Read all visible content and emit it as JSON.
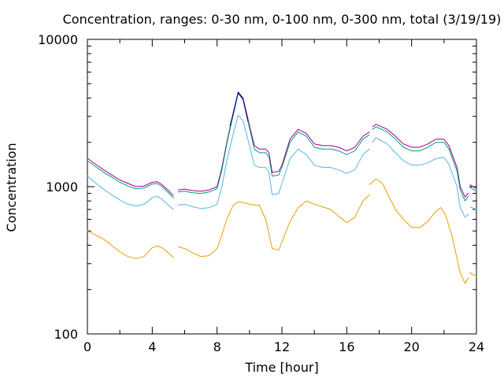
{
  "chart_data": {
    "type": "line",
    "title": "Concentration, ranges: 0-30 nm, 0-100 nm, 0-300 nm, total (3/19/19)",
    "xlabel": "Time [hour]",
    "ylabel": "Concentration",
    "xlim": [
      0,
      24
    ],
    "ylim": [
      100,
      10000
    ],
    "yscale": "log",
    "grid": false,
    "x_ticks": [
      "0",
      "4",
      "8",
      "12",
      "16",
      "20",
      "24"
    ],
    "y_ticks": [
      "100",
      "1000",
      "10000"
    ],
    "series": [
      {
        "color": "#990099",
        "segments": [
          [
            [
              0,
              1560
            ],
            [
              0.5,
              1420
            ],
            [
              1,
              1300
            ],
            [
              1.5,
              1200
            ],
            [
              2,
              1110
            ],
            [
              2.5,
              1050
            ],
            [
              3,
              1000
            ],
            [
              3.5,
              1010
            ],
            [
              4,
              1070
            ],
            [
              4.3,
              1080
            ],
            [
              4.6,
              1030
            ],
            [
              5,
              940
            ],
            [
              5.3,
              870
            ]
          ],
          [
            [
              5.6,
              950
            ],
            [
              6,
              960
            ],
            [
              6.5,
              940
            ],
            [
              7,
              930
            ],
            [
              7.5,
              950
            ],
            [
              8,
              1000
            ],
            [
              8.3,
              1350
            ],
            [
              8.6,
              2000
            ],
            [
              9,
              3200
            ],
            [
              9.3,
              4400
            ],
            [
              9.6,
              4000
            ],
            [
              10,
              2600
            ],
            [
              10.3,
              1900
            ],
            [
              10.6,
              1800
            ],
            [
              11,
              1800
            ],
            [
              11.2,
              1700
            ],
            [
              11.4,
              1250
            ],
            [
              11.8,
              1270
            ],
            [
              12,
              1400
            ],
            [
              12.5,
              2100
            ],
            [
              13,
              2450
            ],
            [
              13.5,
              2300
            ],
            [
              14,
              1950
            ],
            [
              14.5,
              1900
            ],
            [
              15,
              1900
            ],
            [
              15.5,
              1850
            ],
            [
              16,
              1750
            ],
            [
              16.5,
              1850
            ],
            [
              17,
              2200
            ],
            [
              17.4,
              2350
            ]
          ],
          [
            [
              17.6,
              2550
            ],
            [
              17.8,
              2650
            ],
            [
              18.5,
              2450
            ],
            [
              19,
              2200
            ],
            [
              19.5,
              1950
            ],
            [
              20,
              1850
            ],
            [
              20.5,
              1850
            ],
            [
              21,
              1950
            ],
            [
              21.5,
              2100
            ],
            [
              22,
              2100
            ],
            [
              22.3,
              1900
            ],
            [
              22.8,
              1350
            ],
            [
              23,
              1000
            ],
            [
              23.3,
              850
            ],
            [
              23.5,
              900
            ]
          ],
          [
            [
              23.6,
              1030
            ],
            [
              24,
              970
            ]
          ]
        ]
      },
      {
        "color": "#009e73",
        "segments": [
          [
            [
              0,
              1500
            ],
            [
              0.5,
              1370
            ],
            [
              1,
              1250
            ],
            [
              1.5,
              1160
            ],
            [
              2,
              1070
            ],
            [
              2.5,
              1010
            ],
            [
              3,
              965
            ],
            [
              3.5,
              980
            ],
            [
              4,
              1040
            ],
            [
              4.3,
              1050
            ],
            [
              4.6,
              1000
            ],
            [
              5,
              910
            ],
            [
              5.3,
              840
            ]
          ],
          [
            [
              5.6,
              920
            ],
            [
              6,
              930
            ],
            [
              6.5,
              910
            ],
            [
              7,
              900
            ],
            [
              7.5,
              920
            ],
            [
              8,
              970
            ],
            [
              8.3,
              1300
            ],
            [
              8.6,
              1950
            ],
            [
              9,
              3100
            ],
            [
              9.3,
              4300
            ],
            [
              9.6,
              3900
            ],
            [
              10,
              2500
            ],
            [
              10.3,
              1800
            ],
            [
              10.6,
              1700
            ],
            [
              11,
              1700
            ],
            [
              11.2,
              1600
            ],
            [
              11.4,
              1180
            ],
            [
              11.8,
              1200
            ],
            [
              12,
              1350
            ],
            [
              12.5,
              2000
            ],
            [
              13,
              2350
            ],
            [
              13.5,
              2200
            ],
            [
              14,
              1850
            ],
            [
              14.5,
              1800
            ],
            [
              15,
              1800
            ],
            [
              15.5,
              1750
            ],
            [
              16,
              1650
            ],
            [
              16.5,
              1750
            ],
            [
              17,
              2100
            ],
            [
              17.4,
              2250
            ]
          ],
          [
            [
              17.6,
              2450
            ],
            [
              17.8,
              2550
            ],
            [
              18.5,
              2350
            ],
            [
              19,
              2100
            ],
            [
              19.5,
              1850
            ],
            [
              20,
              1750
            ],
            [
              20.5,
              1750
            ],
            [
              21,
              1850
            ],
            [
              21.5,
              2000
            ],
            [
              22,
              2000
            ],
            [
              22.3,
              1800
            ],
            [
              22.8,
              1280
            ],
            [
              23,
              950
            ],
            [
              23.3,
              800
            ],
            [
              23.5,
              860
            ]
          ],
          [
            [
              23.6,
              990
            ],
            [
              24,
              930
            ]
          ]
        ]
      },
      {
        "color": "#000080",
        "segments": [
          [
            [
              8.8,
              2600
            ],
            [
              9,
              3150
            ],
            [
              9.3,
              4350
            ],
            [
              9.6,
              3950
            ],
            [
              9.9,
              2800
            ]
          ]
        ]
      },
      {
        "color": "#56b4e9",
        "segments": [
          [
            [
              0,
              1180
            ],
            [
              0.5,
              1060
            ],
            [
              1,
              960
            ],
            [
              1.5,
              880
            ],
            [
              2,
              810
            ],
            [
              2.5,
              760
            ],
            [
              3,
              740
            ],
            [
              3.5,
              760
            ],
            [
              4,
              840
            ],
            [
              4.3,
              860
            ],
            [
              4.6,
              820
            ],
            [
              5,
              750
            ],
            [
              5.3,
              700
            ]
          ],
          [
            [
              5.6,
              750
            ],
            [
              6,
              760
            ],
            [
              6.5,
              730
            ],
            [
              7,
              710
            ],
            [
              7.5,
              720
            ],
            [
              8,
              760
            ],
            [
              8.3,
              1000
            ],
            [
              8.6,
              1500
            ],
            [
              9,
              2300
            ],
            [
              9.3,
              3050
            ],
            [
              9.6,
              2800
            ],
            [
              10,
              1900
            ],
            [
              10.3,
              1400
            ],
            [
              10.6,
              1350
            ],
            [
              11,
              1350
            ],
            [
              11.2,
              1250
            ],
            [
              11.4,
              880
            ],
            [
              11.8,
              900
            ],
            [
              12,
              1050
            ],
            [
              12.5,
              1550
            ],
            [
              13,
              1800
            ],
            [
              13.5,
              1650
            ],
            [
              14,
              1400
            ],
            [
              14.5,
              1350
            ],
            [
              15,
              1350
            ],
            [
              15.5,
              1300
            ],
            [
              16,
              1230
            ],
            [
              16.5,
              1300
            ],
            [
              17,
              1650
            ],
            [
              17.4,
              1800
            ]
          ],
          [
            [
              17.6,
              2000
            ],
            [
              17.8,
              2150
            ],
            [
              18.5,
              1950
            ],
            [
              19,
              1700
            ],
            [
              19.5,
              1500
            ],
            [
              20,
              1400
            ],
            [
              20.5,
              1400
            ],
            [
              21,
              1450
            ],
            [
              21.5,
              1550
            ],
            [
              22,
              1580
            ],
            [
              22.3,
              1420
            ],
            [
              22.8,
              1000
            ],
            [
              23,
              720
            ],
            [
              23.3,
              620
            ],
            [
              23.5,
              650
            ]
          ],
          [
            [
              23.6,
              730
            ],
            [
              24,
              700
            ]
          ]
        ]
      },
      {
        "color": "#e69f00",
        "segments": [
          [
            [
              0,
              500
            ],
            [
              0.5,
              470
            ],
            [
              1,
              440
            ],
            [
              1.5,
              400
            ],
            [
              2,
              360
            ],
            [
              2.5,
              335
            ],
            [
              3,
              325
            ],
            [
              3.5,
              335
            ],
            [
              4,
              385
            ],
            [
              4.3,
              395
            ],
            [
              4.6,
              385
            ],
            [
              5,
              355
            ],
            [
              5.3,
              330
            ]
          ],
          [
            [
              5.6,
              390
            ],
            [
              6,
              380
            ],
            [
              6.5,
              355
            ],
            [
              7,
              335
            ],
            [
              7.5,
              340
            ],
            [
              8,
              380
            ],
            [
              8.3,
              470
            ],
            [
              8.6,
              600
            ],
            [
              9,
              750
            ],
            [
              9.3,
              790
            ],
            [
              9.6,
              780
            ],
            [
              10,
              760
            ],
            [
              10.3,
              750
            ],
            [
              10.6,
              750
            ],
            [
              11,
              600
            ],
            [
              11.2,
              480
            ],
            [
              11.4,
              380
            ],
            [
              11.8,
              370
            ],
            [
              12,
              420
            ],
            [
              12.5,
              580
            ],
            [
              13,
              720
            ],
            [
              13.5,
              800
            ],
            [
              14,
              760
            ],
            [
              14.5,
              730
            ],
            [
              15,
              700
            ],
            [
              15.5,
              630
            ],
            [
              16,
              570
            ],
            [
              16.5,
              620
            ],
            [
              17,
              800
            ],
            [
              17.4,
              880
            ]
          ],
          [
            [
              17.4,
              1030
            ],
            [
              17.8,
              1130
            ],
            [
              18.2,
              1050
            ],
            [
              18.5,
              900
            ],
            [
              19,
              700
            ],
            [
              19.5,
              600
            ],
            [
              20,
              530
            ],
            [
              20.5,
              525
            ],
            [
              21,
              580
            ],
            [
              21.5,
              680
            ],
            [
              21.8,
              720
            ],
            [
              22.1,
              640
            ],
            [
              22.5,
              460
            ],
            [
              23,
              260
            ],
            [
              23.3,
              220
            ],
            [
              23.5,
              240
            ]
          ],
          [
            [
              23.6,
              260
            ],
            [
              24,
              245
            ]
          ]
        ]
      }
    ]
  }
}
